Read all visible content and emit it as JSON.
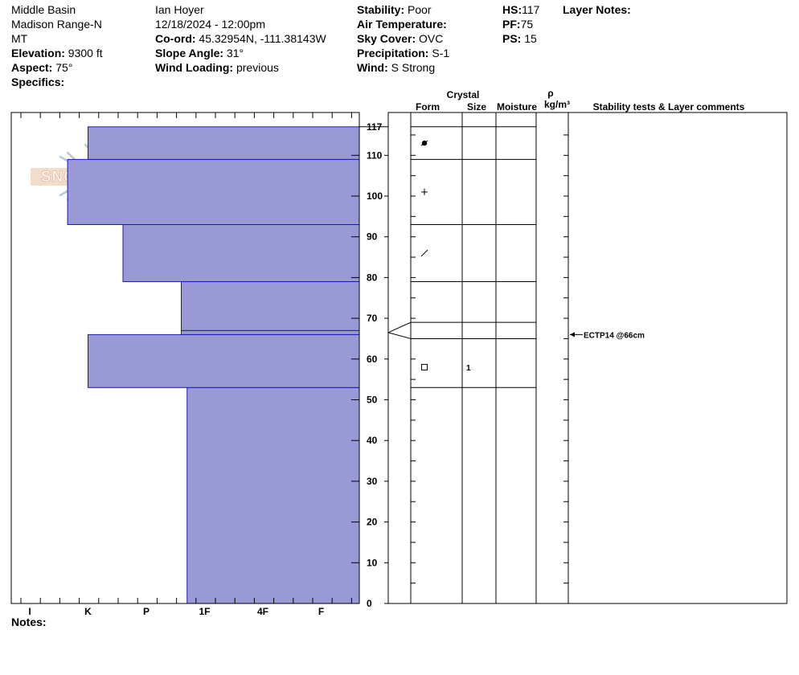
{
  "header": {
    "col1": {
      "location": "Middle Basin",
      "range": "Madison Range-N",
      "state": "MT",
      "elevation_label": "Elevation:",
      "elevation_value": " 9300 ft",
      "aspect_label": "Aspect:",
      "aspect_value": " 75°",
      "specifics_label": "Specifics:"
    },
    "col2": {
      "observer": "Ian Hoyer",
      "datetime": "12/18/2024 - 12:00pm",
      "coord_label": "Co-ord:",
      "coord_value": " 45.32954N, -111.38143W",
      "slope_label": "Slope Angle:",
      "slope_value": " 31°",
      "wind_loading_label": "Wind Loading:",
      "wind_loading_value": " previous"
    },
    "col3": {
      "stability_label": "Stability:",
      "stability_value": " Poor",
      "air_temp_label": "Air Temperature:",
      "sky_label": "Sky Cover:",
      "sky_value": " OVC",
      "precip_label": "Precipitation:",
      "precip_value": " S-1",
      "wind_label": "Wind:",
      "wind_value": "  S Strong"
    },
    "col4": {
      "hs_label": "HS:",
      "hs_value": "117",
      "pf_label": "PF:",
      "pf_value": "75",
      "ps_label": "PS:",
      "ps_value": " 15"
    },
    "layer_notes_label": "Layer Notes:",
    "notes_label": "Notes:"
  },
  "logo_text": "SNOW PILOT",
  "table_headers": {
    "crystal": "Crystal",
    "form": "Form",
    "size": "Size",
    "moisture": "Moisture",
    "rho": "ρ",
    "density_unit": "kg/m³",
    "comments": "Stability tests & Layer comments"
  },
  "colors": {
    "hardness_fill": "#9999d6",
    "hardness_stroke": "#1a1ab3"
  },
  "chart_data": {
    "type": "bar",
    "orientation": "horizontal",
    "x_categories": [
      "I",
      "K",
      "P",
      "1F",
      "4F",
      "F"
    ],
    "y_axis": {
      "min": 0,
      "max": 120,
      "ticks": [
        0,
        10,
        20,
        30,
        40,
        50,
        60,
        70,
        80,
        90,
        100,
        110
      ],
      "top_label": 117
    },
    "layers": [
      {
        "bottom": 0,
        "top": 53,
        "hardness_index": 2.7
      },
      {
        "bottom": 53,
        "top": 66,
        "hardness_index": 1.0
      },
      {
        "bottom": 66,
        "top": 67,
        "hardness_index": 2.6
      },
      {
        "bottom": 67,
        "top": 79,
        "hardness_index": 2.6
      },
      {
        "bottom": 79,
        "top": 93,
        "hardness_index": 1.6
      },
      {
        "bottom": 93,
        "top": 109,
        "hardness_index": 0.65
      },
      {
        "bottom": 109,
        "top": 117,
        "hardness_index": 1.0
      }
    ],
    "crystal_table_lines": [
      53,
      65,
      69,
      79,
      93,
      109,
      117
    ],
    "crystals": [
      {
        "height": 113,
        "form": "graupel-dot"
      },
      {
        "height": 101,
        "form": "plus"
      },
      {
        "height": 86,
        "form": "slash"
      },
      {
        "height": 58,
        "form": "square",
        "size": "1"
      }
    ],
    "stability_tests": [
      {
        "height": 66,
        "text": "ECTP14 @66cm"
      }
    ]
  }
}
